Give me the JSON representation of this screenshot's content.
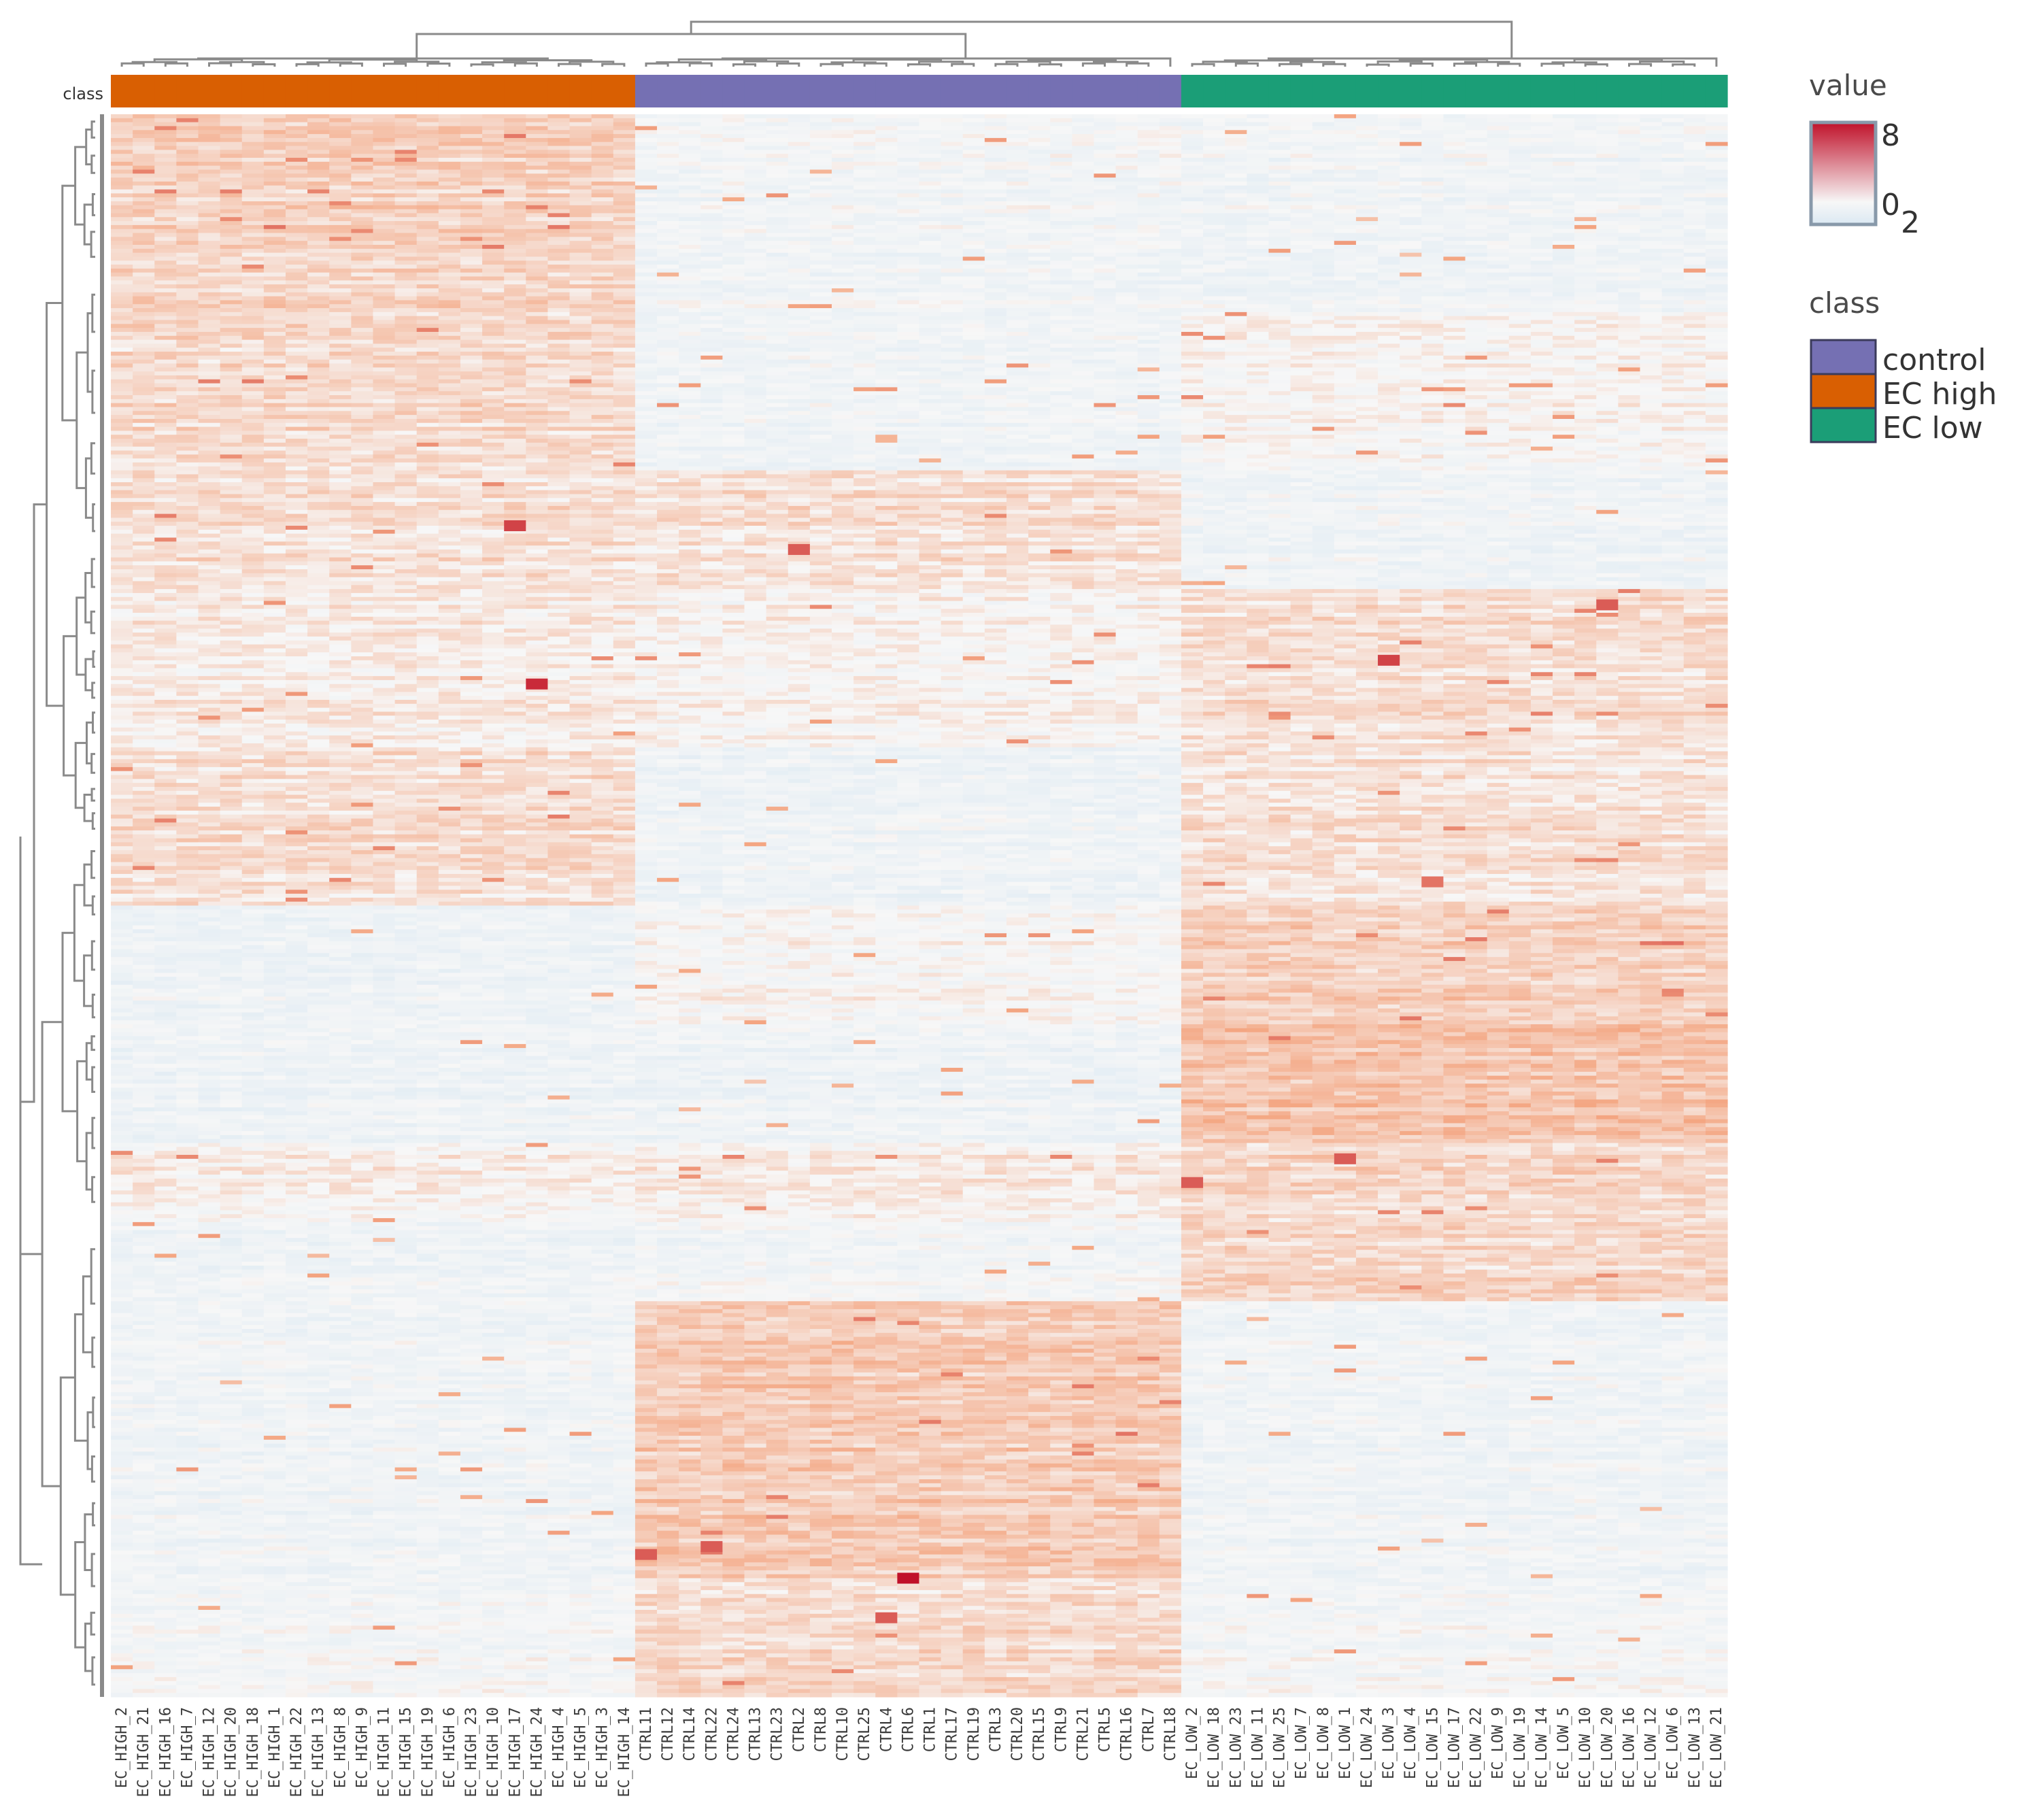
{
  "chart_data": {
    "type": "heatmap",
    "title": "",
    "annotation_row_label": "class",
    "legend_value_title": "value",
    "legend_value_ticks": [
      "8",
      "0",
      "2"
    ],
    "value_range": [
      -2,
      8
    ],
    "colors": {
      "low": "#dbe9f3",
      "mid": "#f7f7f7",
      "high": "#c0112a",
      "control": "#7570b3",
      "EC high": "#d95f02",
      "EC low": "#1b9e77"
    },
    "legend_class_title": "class",
    "classes": [
      "control",
      "EC high",
      "EC low"
    ],
    "columns": [
      {
        "label": "EC_HIGH_2",
        "class": "EC high"
      },
      {
        "label": "EC_HIGH_21",
        "class": "EC high"
      },
      {
        "label": "EC_HIGH_16",
        "class": "EC high"
      },
      {
        "label": "EC_HIGH_7",
        "class": "EC high"
      },
      {
        "label": "EC_HIGH_12",
        "class": "EC high"
      },
      {
        "label": "EC_HIGH_20",
        "class": "EC high"
      },
      {
        "label": "EC_HIGH_18",
        "class": "EC high"
      },
      {
        "label": "EC_HIGH_1",
        "class": "EC high"
      },
      {
        "label": "EC_HIGH_22",
        "class": "EC high"
      },
      {
        "label": "EC_HIGH_13",
        "class": "EC high"
      },
      {
        "label": "EC_HIGH_8",
        "class": "EC high"
      },
      {
        "label": "EC_HIGH_9",
        "class": "EC high"
      },
      {
        "label": "EC_HIGH_11",
        "class": "EC high"
      },
      {
        "label": "EC_HIGH_15",
        "class": "EC high"
      },
      {
        "label": "EC_HIGH_19",
        "class": "EC high"
      },
      {
        "label": "EC_HIGH_6",
        "class": "EC high"
      },
      {
        "label": "EC_HIGH_23",
        "class": "EC high"
      },
      {
        "label": "EC_HIGH_10",
        "class": "EC high"
      },
      {
        "label": "EC_HIGH_17",
        "class": "EC high"
      },
      {
        "label": "EC_HIGH_24",
        "class": "EC high"
      },
      {
        "label": "EC_HIGH_4",
        "class": "EC high"
      },
      {
        "label": "EC_HIGH_5",
        "class": "EC high"
      },
      {
        "label": "EC_HIGH_3",
        "class": "EC high"
      },
      {
        "label": "EC_HIGH_14",
        "class": "EC high"
      },
      {
        "label": "CTRL11",
        "class": "control"
      },
      {
        "label": "CTRL12",
        "class": "control"
      },
      {
        "label": "CTRL14",
        "class": "control"
      },
      {
        "label": "CTRL22",
        "class": "control"
      },
      {
        "label": "CTRL24",
        "class": "control"
      },
      {
        "label": "CTRL13",
        "class": "control"
      },
      {
        "label": "CTRL23",
        "class": "control"
      },
      {
        "label": "CTRL2",
        "class": "control"
      },
      {
        "label": "CTRL8",
        "class": "control"
      },
      {
        "label": "CTRL10",
        "class": "control"
      },
      {
        "label": "CTRL25",
        "class": "control"
      },
      {
        "label": "CTRL4",
        "class": "control"
      },
      {
        "label": "CTRL6",
        "class": "control"
      },
      {
        "label": "CTRL1",
        "class": "control"
      },
      {
        "label": "CTRL17",
        "class": "control"
      },
      {
        "label": "CTRL19",
        "class": "control"
      },
      {
        "label": "CTRL3",
        "class": "control"
      },
      {
        "label": "CTRL20",
        "class": "control"
      },
      {
        "label": "CTRL15",
        "class": "control"
      },
      {
        "label": "CTRL9",
        "class": "control"
      },
      {
        "label": "CTRL21",
        "class": "control"
      },
      {
        "label": "CTRL5",
        "class": "control"
      },
      {
        "label": "CTRL16",
        "class": "control"
      },
      {
        "label": "CTRL7",
        "class": "control"
      },
      {
        "label": "CTRL18",
        "class": "control"
      },
      {
        "label": "EC_LOW_2",
        "class": "EC low"
      },
      {
        "label": "EC_LOW_18",
        "class": "EC low"
      },
      {
        "label": "EC_LOW_23",
        "class": "EC low"
      },
      {
        "label": "EC_LOW_11",
        "class": "EC low"
      },
      {
        "label": "EC_LOW_25",
        "class": "EC low"
      },
      {
        "label": "EC_LOW_7",
        "class": "EC low"
      },
      {
        "label": "EC_LOW_8",
        "class": "EC low"
      },
      {
        "label": "EC_LOW_1",
        "class": "EC low"
      },
      {
        "label": "EC_LOW_24",
        "class": "EC low"
      },
      {
        "label": "EC_LOW_3",
        "class": "EC low"
      },
      {
        "label": "EC_LOW_4",
        "class": "EC low"
      },
      {
        "label": "EC_LOW_15",
        "class": "EC low"
      },
      {
        "label": "EC_LOW_17",
        "class": "EC low"
      },
      {
        "label": "EC_LOW_22",
        "class": "EC low"
      },
      {
        "label": "EC_LOW_9",
        "class": "EC low"
      },
      {
        "label": "EC_LOW_19",
        "class": "EC low"
      },
      {
        "label": "EC_LOW_14",
        "class": "EC low"
      },
      {
        "label": "EC_LOW_5",
        "class": "EC low"
      },
      {
        "label": "EC_LOW_10",
        "class": "EC low"
      },
      {
        "label": "EC_LOW_20",
        "class": "EC low"
      },
      {
        "label": "EC_LOW_16",
        "class": "EC low"
      },
      {
        "label": "EC_LOW_12",
        "class": "EC low"
      },
      {
        "label": "EC_LOW_6",
        "class": "EC low"
      },
      {
        "label": "EC_LOW_13",
        "class": "EC low"
      },
      {
        "label": "EC_LOW_21",
        "class": "EC low"
      }
    ],
    "row_blocks": [
      {
        "rows": 50,
        "EC high": 0.9,
        "control": -0.4,
        "EC low": -0.5
      },
      {
        "rows": 40,
        "EC high": 0.7,
        "control": -0.5,
        "EC low": 0.0
      },
      {
        "rows": 30,
        "EC high": 0.6,
        "control": 0.6,
        "EC low": -0.5
      },
      {
        "rows": 40,
        "EC high": 0.3,
        "control": 0.1,
        "EC low": 0.6
      },
      {
        "rows": 40,
        "EC high": 0.6,
        "control": -0.6,
        "EC low": 0.5
      },
      {
        "rows": 30,
        "EC high": -0.6,
        "control": 0.0,
        "EC low": 1.0
      },
      {
        "rows": 30,
        "EC high": -0.6,
        "control": -0.6,
        "EC low": 1.3
      },
      {
        "rows": 20,
        "EC high": 0.2,
        "control": 0.3,
        "EC low": 0.8
      },
      {
        "rows": 20,
        "EC high": -0.6,
        "control": -0.4,
        "EC low": 0.8
      },
      {
        "rows": 70,
        "EC high": -0.5,
        "control": 1.1,
        "EC low": -0.5
      },
      {
        "rows": 30,
        "EC high": -0.3,
        "control": 0.7,
        "EC low": -0.3
      }
    ],
    "hotspots": [
      {
        "column": "EC_HIGH_17",
        "row_fraction": 0.26,
        "value": 6
      },
      {
        "column": "EC_HIGH_24",
        "row_fraction": 0.36,
        "value": 7
      },
      {
        "column": "EC_LOW_3",
        "row_fraction": 0.345,
        "value": 6
      },
      {
        "column": "CTRL6",
        "row_fraction": 0.925,
        "value": 8
      },
      {
        "column": "CTRL4",
        "row_fraction": 0.95,
        "value": 5
      },
      {
        "column": "EC_LOW_1",
        "row_fraction": 0.66,
        "value": 5
      },
      {
        "column": "EC_LOW_2",
        "row_fraction": 0.675,
        "value": 5
      },
      {
        "column": "CTRL11",
        "row_fraction": 0.91,
        "value": 5
      },
      {
        "column": "CTRL2",
        "row_fraction": 0.275,
        "value": 5
      },
      {
        "column": "CTRL22",
        "row_fraction": 0.905,
        "value": 5
      },
      {
        "column": "EC_LOW_15",
        "row_fraction": 0.485,
        "value": 4
      },
      {
        "column": "EC_LOW_20",
        "row_fraction": 0.31,
        "value": 5
      }
    ]
  }
}
